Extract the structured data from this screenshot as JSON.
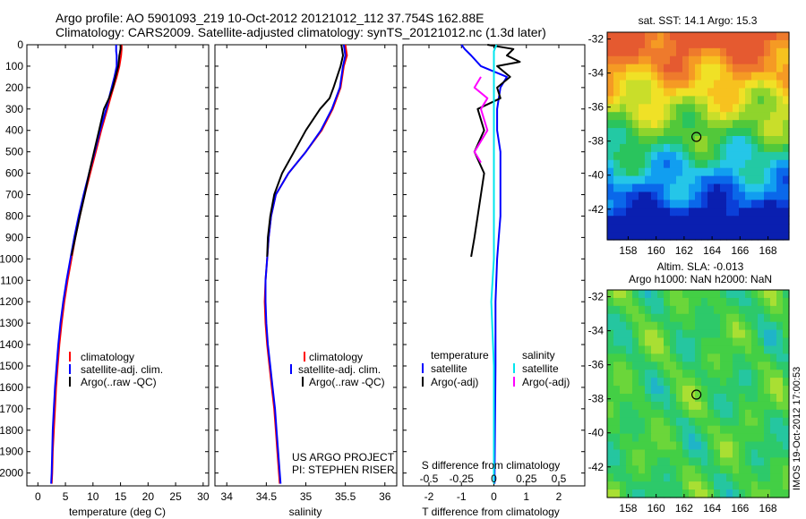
{
  "header": {
    "line1": "Argo profile: AO 5901093_219 10-Oct-2012 20121012_112 37.754S 162.88E",
    "line2": "Climatology: CARS2009. Satellite-adjusted climatology: synTS_20121012.nc (1.3d later)"
  },
  "credits": {
    "project": "US ARGO PROJECT",
    "pi": "PI: STEPHEN RISER"
  },
  "sidebar_stamp": "IMOS 19-Oct-2012 17:00:53",
  "colors": {
    "climatology": "#ff0000",
    "satellite": "#0000ff",
    "argo": "#000000",
    "sal_satellite": "#00e5ee",
    "sal_argo": "#ff00ff"
  },
  "chart_data": [
    {
      "type": "line",
      "id": "temperature",
      "xlabel": "temperature (deg C)",
      "xlim": [
        -2,
        31
      ],
      "xticks": [
        0,
        5,
        10,
        15,
        20,
        25,
        30
      ],
      "ylim": [
        2060,
        0
      ],
      "yticks": [
        0,
        100,
        200,
        300,
        400,
        500,
        600,
        700,
        800,
        900,
        1000,
        1100,
        1200,
        1300,
        1400,
        1500,
        1600,
        1700,
        1800,
        1900,
        2000
      ],
      "legend": [
        "climatology",
        "satellite-adj. clim.",
        "Argo(..raw -QC)"
      ],
      "series": [
        {
          "name": "climatology",
          "color": "#ff0000",
          "points": [
            [
              15.2,
              0
            ],
            [
              15.2,
              20
            ],
            [
              15.1,
              50
            ],
            [
              14.8,
              100
            ],
            [
              14.3,
              150
            ],
            [
              13.7,
              200
            ],
            [
              12.6,
              300
            ],
            [
              11.5,
              400
            ],
            [
              10.5,
              500
            ],
            [
              9.5,
              600
            ],
            [
              8.5,
              700
            ],
            [
              7.6,
              800
            ],
            [
              6.8,
              900
            ],
            [
              6.1,
              1000
            ],
            [
              5.4,
              1100
            ],
            [
              4.8,
              1200
            ],
            [
              4.3,
              1300
            ],
            [
              3.9,
              1400
            ],
            [
              3.6,
              1500
            ],
            [
              3.3,
              1600
            ],
            [
              3.1,
              1700
            ],
            [
              2.9,
              1800
            ],
            [
              2.7,
              1900
            ],
            [
              2.6,
              2000
            ],
            [
              2.5,
              2050
            ]
          ]
        },
        {
          "name": "satellite-adj. clim.",
          "color": "#0000ff",
          "points": [
            [
              14.2,
              0
            ],
            [
              14.2,
              30
            ],
            [
              14.3,
              50
            ],
            [
              14.3,
              100
            ],
            [
              13.9,
              150
            ],
            [
              13.4,
              200
            ],
            [
              12.4,
              300
            ],
            [
              11.3,
              400
            ],
            [
              10.3,
              500
            ],
            [
              9.3,
              600
            ],
            [
              8.3,
              700
            ],
            [
              7.4,
              800
            ],
            [
              6.6,
              900
            ],
            [
              5.9,
              1000
            ],
            [
              5.2,
              1100
            ],
            [
              4.6,
              1200
            ],
            [
              4.1,
              1300
            ],
            [
              3.7,
              1400
            ],
            [
              3.4,
              1500
            ],
            [
              3.1,
              1600
            ],
            [
              2.9,
              1700
            ],
            [
              2.7,
              1800
            ],
            [
              2.6,
              1900
            ],
            [
              2.5,
              2000
            ],
            [
              2.4,
              2050
            ]
          ]
        },
        {
          "name": "Argo(..raw -QC)",
          "color": "#000000",
          "points": [
            [
              15.0,
              0
            ],
            [
              15.0,
              20
            ],
            [
              14.8,
              50
            ],
            [
              14.6,
              100
            ],
            [
              14.1,
              150
            ],
            [
              13.6,
              200
            ],
            [
              12.9,
              250
            ],
            [
              12.0,
              300
            ],
            [
              11.1,
              400
            ],
            [
              10.2,
              500
            ],
            [
              9.3,
              600
            ],
            [
              8.5,
              700
            ],
            [
              7.6,
              800
            ],
            [
              6.8,
              900
            ],
            [
              6.1,
              985
            ]
          ]
        }
      ]
    },
    {
      "type": "line",
      "id": "salinity",
      "xlabel": "salinity",
      "xlim": [
        33.85,
        36.15
      ],
      "xticks": [
        34,
        34.5,
        35,
        35.5,
        36
      ],
      "ylim": [
        2060,
        0
      ],
      "legend": [
        "climatology",
        "satellite-adj. clim.",
        "Argo(..raw -QC)"
      ],
      "series": [
        {
          "name": "climatology",
          "color": "#ff0000",
          "points": [
            [
              35.5,
              0
            ],
            [
              35.52,
              50
            ],
            [
              35.48,
              100
            ],
            [
              35.44,
              200
            ],
            [
              35.34,
              300
            ],
            [
              35.2,
              400
            ],
            [
              35.0,
              500
            ],
            [
              34.78,
              600
            ],
            [
              34.62,
              700
            ],
            [
              34.56,
              800
            ],
            [
              34.53,
              900
            ],
            [
              34.51,
              1000
            ],
            [
              34.49,
              1100
            ],
            [
              34.48,
              1200
            ],
            [
              34.49,
              1300
            ],
            [
              34.51,
              1400
            ],
            [
              34.54,
              1500
            ],
            [
              34.57,
              1600
            ],
            [
              34.6,
              1700
            ],
            [
              34.62,
              1800
            ],
            [
              34.64,
              1900
            ],
            [
              34.66,
              2000
            ],
            [
              34.67,
              2050
            ]
          ]
        },
        {
          "name": "satellite-adj. clim.",
          "color": "#0000ff",
          "points": [
            [
              35.48,
              0
            ],
            [
              35.5,
              50
            ],
            [
              35.47,
              100
            ],
            [
              35.43,
              200
            ],
            [
              35.33,
              300
            ],
            [
              35.19,
              400
            ],
            [
              35.0,
              500
            ],
            [
              34.78,
              600
            ],
            [
              34.62,
              700
            ],
            [
              34.56,
              800
            ],
            [
              34.53,
              900
            ],
            [
              34.51,
              1000
            ],
            [
              34.49,
              1100
            ],
            [
              34.49,
              1200
            ],
            [
              34.5,
              1300
            ],
            [
              34.52,
              1400
            ],
            [
              34.55,
              1500
            ],
            [
              34.58,
              1600
            ],
            [
              34.61,
              1700
            ],
            [
              34.63,
              1800
            ],
            [
              34.65,
              1900
            ],
            [
              34.67,
              2000
            ],
            [
              34.68,
              2050
            ]
          ]
        },
        {
          "name": "Argo(..raw -QC)",
          "color": "#000000",
          "points": [
            [
              35.45,
              0
            ],
            [
              35.47,
              50
            ],
            [
              35.44,
              100
            ],
            [
              35.35,
              200
            ],
            [
              35.3,
              250
            ],
            [
              35.18,
              300
            ],
            [
              35.0,
              400
            ],
            [
              34.85,
              500
            ],
            [
              34.7,
              600
            ],
            [
              34.6,
              700
            ],
            [
              34.55,
              800
            ],
            [
              34.52,
              900
            ],
            [
              34.51,
              990
            ]
          ]
        }
      ]
    },
    {
      "type": "line",
      "id": "difference",
      "xlabel": "T difference from climatology",
      "xlabel_top": "S difference from climatology",
      "xlim": [
        -2.8,
        2.8
      ],
      "xticks": [
        -2,
        -1,
        0,
        1,
        2
      ],
      "xticks_top": [
        [
          -0.5,
          "-0.5"
        ],
        [
          -0.25,
          "-0.25"
        ],
        [
          0,
          "0"
        ],
        [
          0.25,
          "0.25"
        ],
        [
          0.5,
          "0.5"
        ]
      ],
      "ylim": [
        2060,
        0
      ],
      "legend_left_title": "temperature",
      "legend_right_title": "salinity",
      "legend_left": [
        "satellite",
        "Argo(-adj)"
      ],
      "legend_right": [
        "satellite",
        "Argo(-adj)"
      ],
      "series": [
        {
          "name": "T satellite",
          "color": "#0000ff",
          "points": [
            [
              -1.0,
              0
            ],
            [
              -0.9,
              20
            ],
            [
              -0.7,
              50
            ],
            [
              -0.4,
              100
            ],
            [
              0.4,
              150
            ],
            [
              0.2,
              200
            ],
            [
              0.1,
              300
            ],
            [
              0.1,
              400
            ],
            [
              0.2,
              500
            ],
            [
              0.2,
              600
            ],
            [
              0.2,
              700
            ],
            [
              0.2,
              800
            ],
            [
              0.15,
              900
            ],
            [
              0.1,
              1000
            ],
            [
              0.05,
              1200
            ],
            [
              0.05,
              1500
            ],
            [
              0.02,
              2050
            ]
          ]
        },
        {
          "name": "T Argo(-adj)",
          "color": "#000000",
          "points": [
            [
              -0.2,
              0
            ],
            [
              0.6,
              20
            ],
            [
              0.4,
              50
            ],
            [
              0.8,
              80
            ],
            [
              0.1,
              100
            ],
            [
              0.5,
              150
            ],
            [
              0.1,
              200
            ],
            [
              0.2,
              250
            ],
            [
              -0.5,
              300
            ],
            [
              -0.3,
              400
            ],
            [
              -0.6,
              500
            ],
            [
              -0.3,
              600
            ],
            [
              -0.4,
              700
            ],
            [
              -0.5,
              800
            ],
            [
              -0.6,
              900
            ],
            [
              -0.7,
              990
            ]
          ]
        },
        {
          "name": "S satellite",
          "color": "#00e5ee",
          "points": [
            [
              0.02,
              0
            ],
            [
              0.0,
              30
            ],
            [
              0.0,
              100
            ],
            [
              0.0,
              200
            ],
            [
              0.0,
              400
            ],
            [
              0.0,
              600
            ],
            [
              0.0,
              800
            ],
            [
              0.0,
              1000
            ],
            [
              -0.02,
              1200
            ],
            [
              0.0,
              1500
            ],
            [
              0.0,
              2050
            ]
          ]
        },
        {
          "name": "S Argo(-adj)",
          "color": "#ff00ff",
          "points": [
            [
              -0.1,
              150
            ],
            [
              -0.15,
              200
            ],
            [
              -0.05,
              250
            ],
            [
              -0.1,
              300
            ],
            [
              -0.05,
              400
            ],
            [
              -0.15,
              500
            ],
            [
              -0.1,
              550
            ]
          ]
        }
      ]
    }
  ],
  "map_sst": {
    "title": "sat. SST: 14.1  Argo: 15.3",
    "xticks": [
      "158",
      "160",
      "162",
      "164",
      "166",
      "168"
    ],
    "yticks": [
      "-32",
      "-34",
      "-36",
      "-38",
      "-40",
      "-42"
    ],
    "lon_range": [
      156.5,
      169.5
    ],
    "lat_range": [
      -43.8,
      -31.6
    ],
    "marker": {
      "lon": 162.88,
      "lat": -37.754
    }
  },
  "map_sla": {
    "title_line1": "Altim. SLA: -0.013",
    "title_line2": "Argo h1000: NaN h2000: NaN",
    "xticks": [
      "158",
      "160",
      "162",
      "164",
      "166",
      "168"
    ],
    "yticks": [
      "-32",
      "-34",
      "-36",
      "-38",
      "-40",
      "-42"
    ],
    "lon_range": [
      156.5,
      169.5
    ],
    "lat_range": [
      -43.8,
      -31.6
    ],
    "marker": {
      "lon": 162.88,
      "lat": -37.754
    }
  }
}
